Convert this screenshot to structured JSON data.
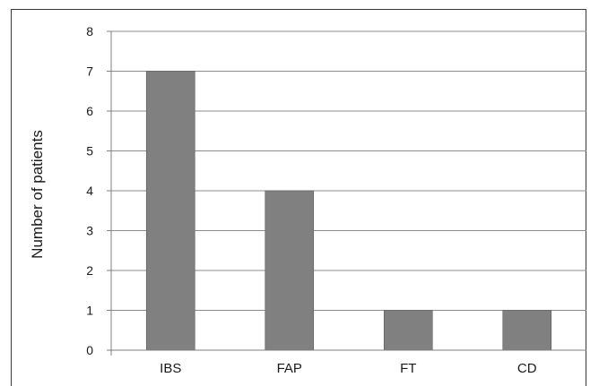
{
  "chart_data": {
    "type": "bar",
    "title": "",
    "xlabel": "",
    "ylabel": "Number of patients",
    "categories": [
      "IBS",
      "FAP",
      "FT",
      "CD"
    ],
    "values": [
      7,
      4,
      1,
      1
    ],
    "ylim": [
      0,
      8
    ],
    "yticks": [
      "0",
      "1",
      "2",
      "3",
      "4",
      "5",
      "6",
      "7",
      "8"
    ],
    "grid": true,
    "legend": "none",
    "bar_color": "#808080"
  }
}
